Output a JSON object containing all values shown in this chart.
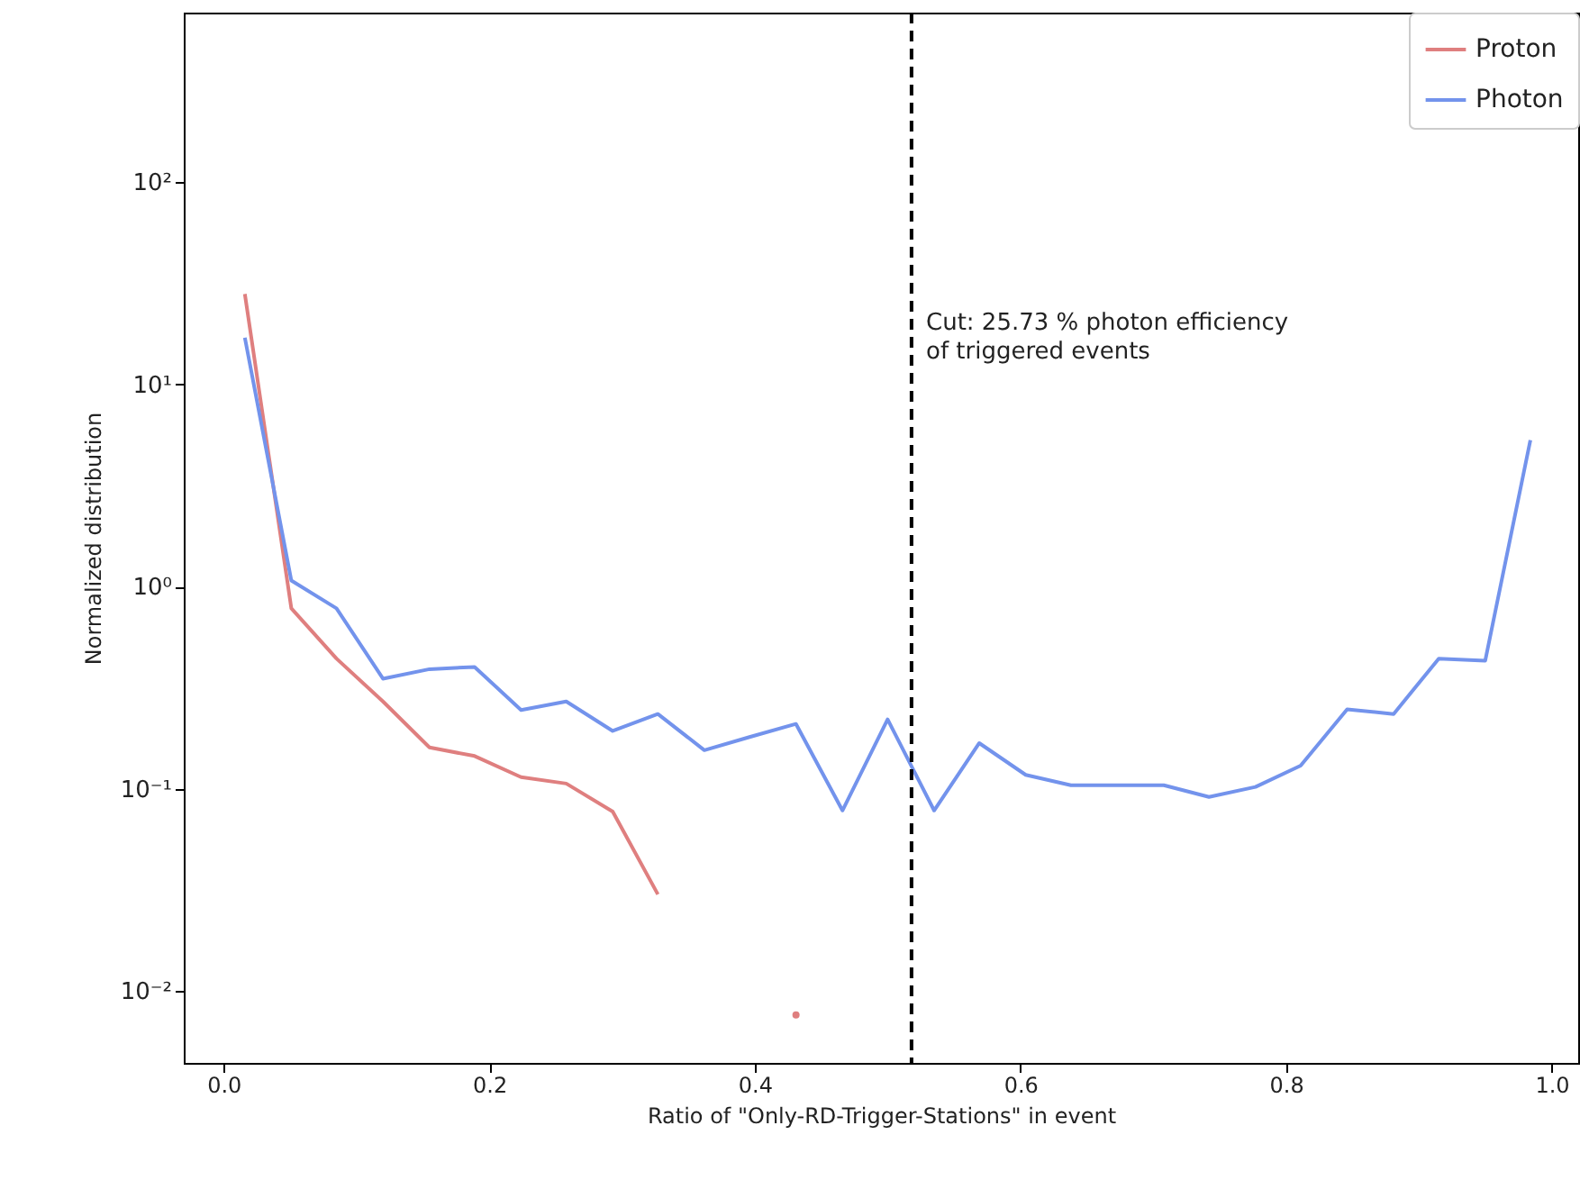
{
  "chart_data": {
    "type": "line",
    "xlabel": "Ratio of \"Only-RD-Trigger-Stations\" in event",
    "ylabel": "Normalized distribution",
    "x": [
      0.016,
      0.051,
      0.085,
      0.12,
      0.155,
      0.189,
      0.224,
      0.258,
      0.293,
      0.327,
      0.362,
      0.396,
      0.431,
      0.466,
      0.5,
      0.535,
      0.569,
      0.604,
      0.638,
      0.673,
      0.708,
      0.742,
      0.777,
      0.811,
      0.846,
      0.881,
      0.915,
      0.95,
      0.984
    ],
    "series": [
      {
        "name": "Proton",
        "color": "#df7f7f",
        "values": [
          28,
          0.78,
          0.44,
          0.27,
          0.16,
          0.145,
          0.114,
          0.106,
          0.077,
          0.03,
          null,
          null,
          0.0076,
          null,
          null,
          null,
          null,
          null,
          null,
          null,
          null,
          null,
          null,
          null,
          null,
          null,
          null,
          null,
          null
        ]
      },
      {
        "name": "Photon",
        "color": "#7393ec",
        "values": [
          17,
          1.07,
          0.78,
          0.35,
          0.39,
          0.4,
          0.245,
          0.27,
          0.193,
          0.234,
          0.155,
          0.18,
          0.209,
          0.078,
          0.22,
          0.078,
          0.168,
          0.117,
          0.104,
          0.104,
          0.104,
          0.091,
          0.102,
          0.13,
          0.247,
          0.234,
          0.44,
          0.43,
          5.3
        ]
      }
    ],
    "log": "y",
    "xlim": [
      -0.03,
      1.02
    ],
    "ylim": [
      0.0044,
      690
    ],
    "xticks": [
      {
        "value": 0,
        "label": "0.0"
      },
      {
        "value": 0.2,
        "label": "0.2"
      },
      {
        "value": 0.4,
        "label": "0.4"
      },
      {
        "value": 0.6,
        "label": "0.6"
      },
      {
        "value": 0.8,
        "label": "0.8"
      },
      {
        "value": 1,
        "label": "1.0"
      }
    ],
    "yticks": [
      {
        "value": 0.01,
        "label": "10⁻²"
      },
      {
        "value": 0.1,
        "label": "10⁻¹"
      },
      {
        "value": 1,
        "label": "10⁰"
      },
      {
        "value": 10,
        "label": "10¹"
      },
      {
        "value": 100,
        "label": "10²"
      }
    ],
    "ref_lines": [
      {
        "axis": "x",
        "value": 0.518,
        "color": "#000000",
        "line_style": "dashed"
      }
    ],
    "annotations": [
      "Cut: 25.73 % photon efficiency\nof triggered events"
    ],
    "legend": "top right",
    "grid": false
  }
}
